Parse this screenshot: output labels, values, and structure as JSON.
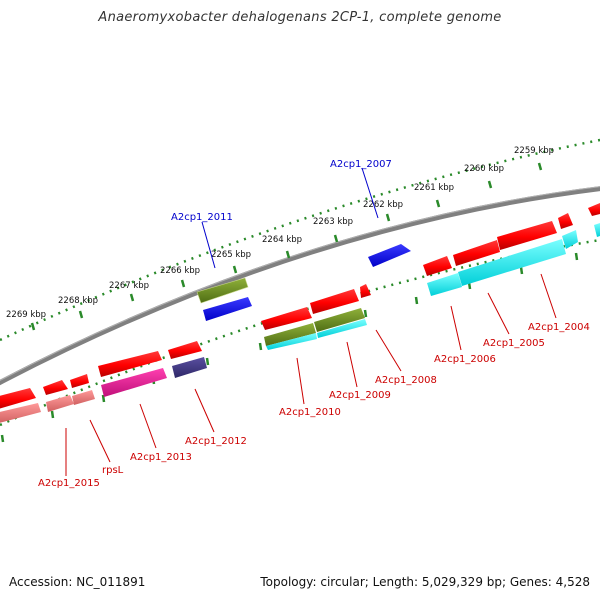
{
  "title": "Anaeromyxobacter dehalogenans 2CP-1, complete genome",
  "footer": {
    "accession": "Accession: NC_011891",
    "summary": "Topology: circular; Length: 5,029,329 bp; Genes: 4,528"
  },
  "scale": {
    "ticks": [
      {
        "label": "2269 kbp"
      },
      {
        "label": "2268 kbp"
      },
      {
        "label": "2267 kbp"
      },
      {
        "label": "2266 kbp"
      },
      {
        "label": "2265 kbp"
      },
      {
        "label": "2264 kbp"
      },
      {
        "label": "2263 kbp"
      },
      {
        "label": "2262 kbp"
      },
      {
        "label": "2261 kbp"
      },
      {
        "label": "2260 kbp"
      },
      {
        "label": "2259 kbp"
      }
    ]
  },
  "genes": [
    {
      "id": "A2cp1_2011",
      "strand": "forward",
      "color": "#0000cc"
    },
    {
      "id": "A2cp1_2007",
      "strand": "forward",
      "color": "#0000cc"
    },
    {
      "id": "A2cp1_2015",
      "strand": "reverse",
      "color": "#cc0000"
    },
    {
      "id": "rpsL",
      "strand": "reverse",
      "color": "#cc0000"
    },
    {
      "id": "A2cp1_2013",
      "strand": "reverse",
      "color": "#cc0000"
    },
    {
      "id": "A2cp1_2012",
      "strand": "reverse",
      "color": "#cc0000"
    },
    {
      "id": "A2cp1_2010",
      "strand": "reverse",
      "color": "#cc0000"
    },
    {
      "id": "A2cp1_2009",
      "strand": "reverse",
      "color": "#cc0000"
    },
    {
      "id": "A2cp1_2008",
      "strand": "reverse",
      "color": "#cc0000"
    },
    {
      "id": "A2cp1_2006",
      "strand": "reverse",
      "color": "#cc0000"
    },
    {
      "id": "A2cp1_2005",
      "strand": "reverse",
      "color": "#cc0000"
    },
    {
      "id": "A2cp1_2004",
      "strand": "reverse",
      "color": "#cc0000"
    }
  ],
  "colors": {
    "backbone": "#808080",
    "tick": "#2a8a2a",
    "forward_label": "#0000cc",
    "reverse_label": "#cc0000",
    "gene_red": "#ff0000",
    "gene_blue": "#0000ff",
    "gene_olive": "#6b8e23",
    "gene_cyan": "#00ffff",
    "gene_pink": "#f08080",
    "gene_magenta": "#ff1493",
    "gene_purple": "#483d8b"
  }
}
